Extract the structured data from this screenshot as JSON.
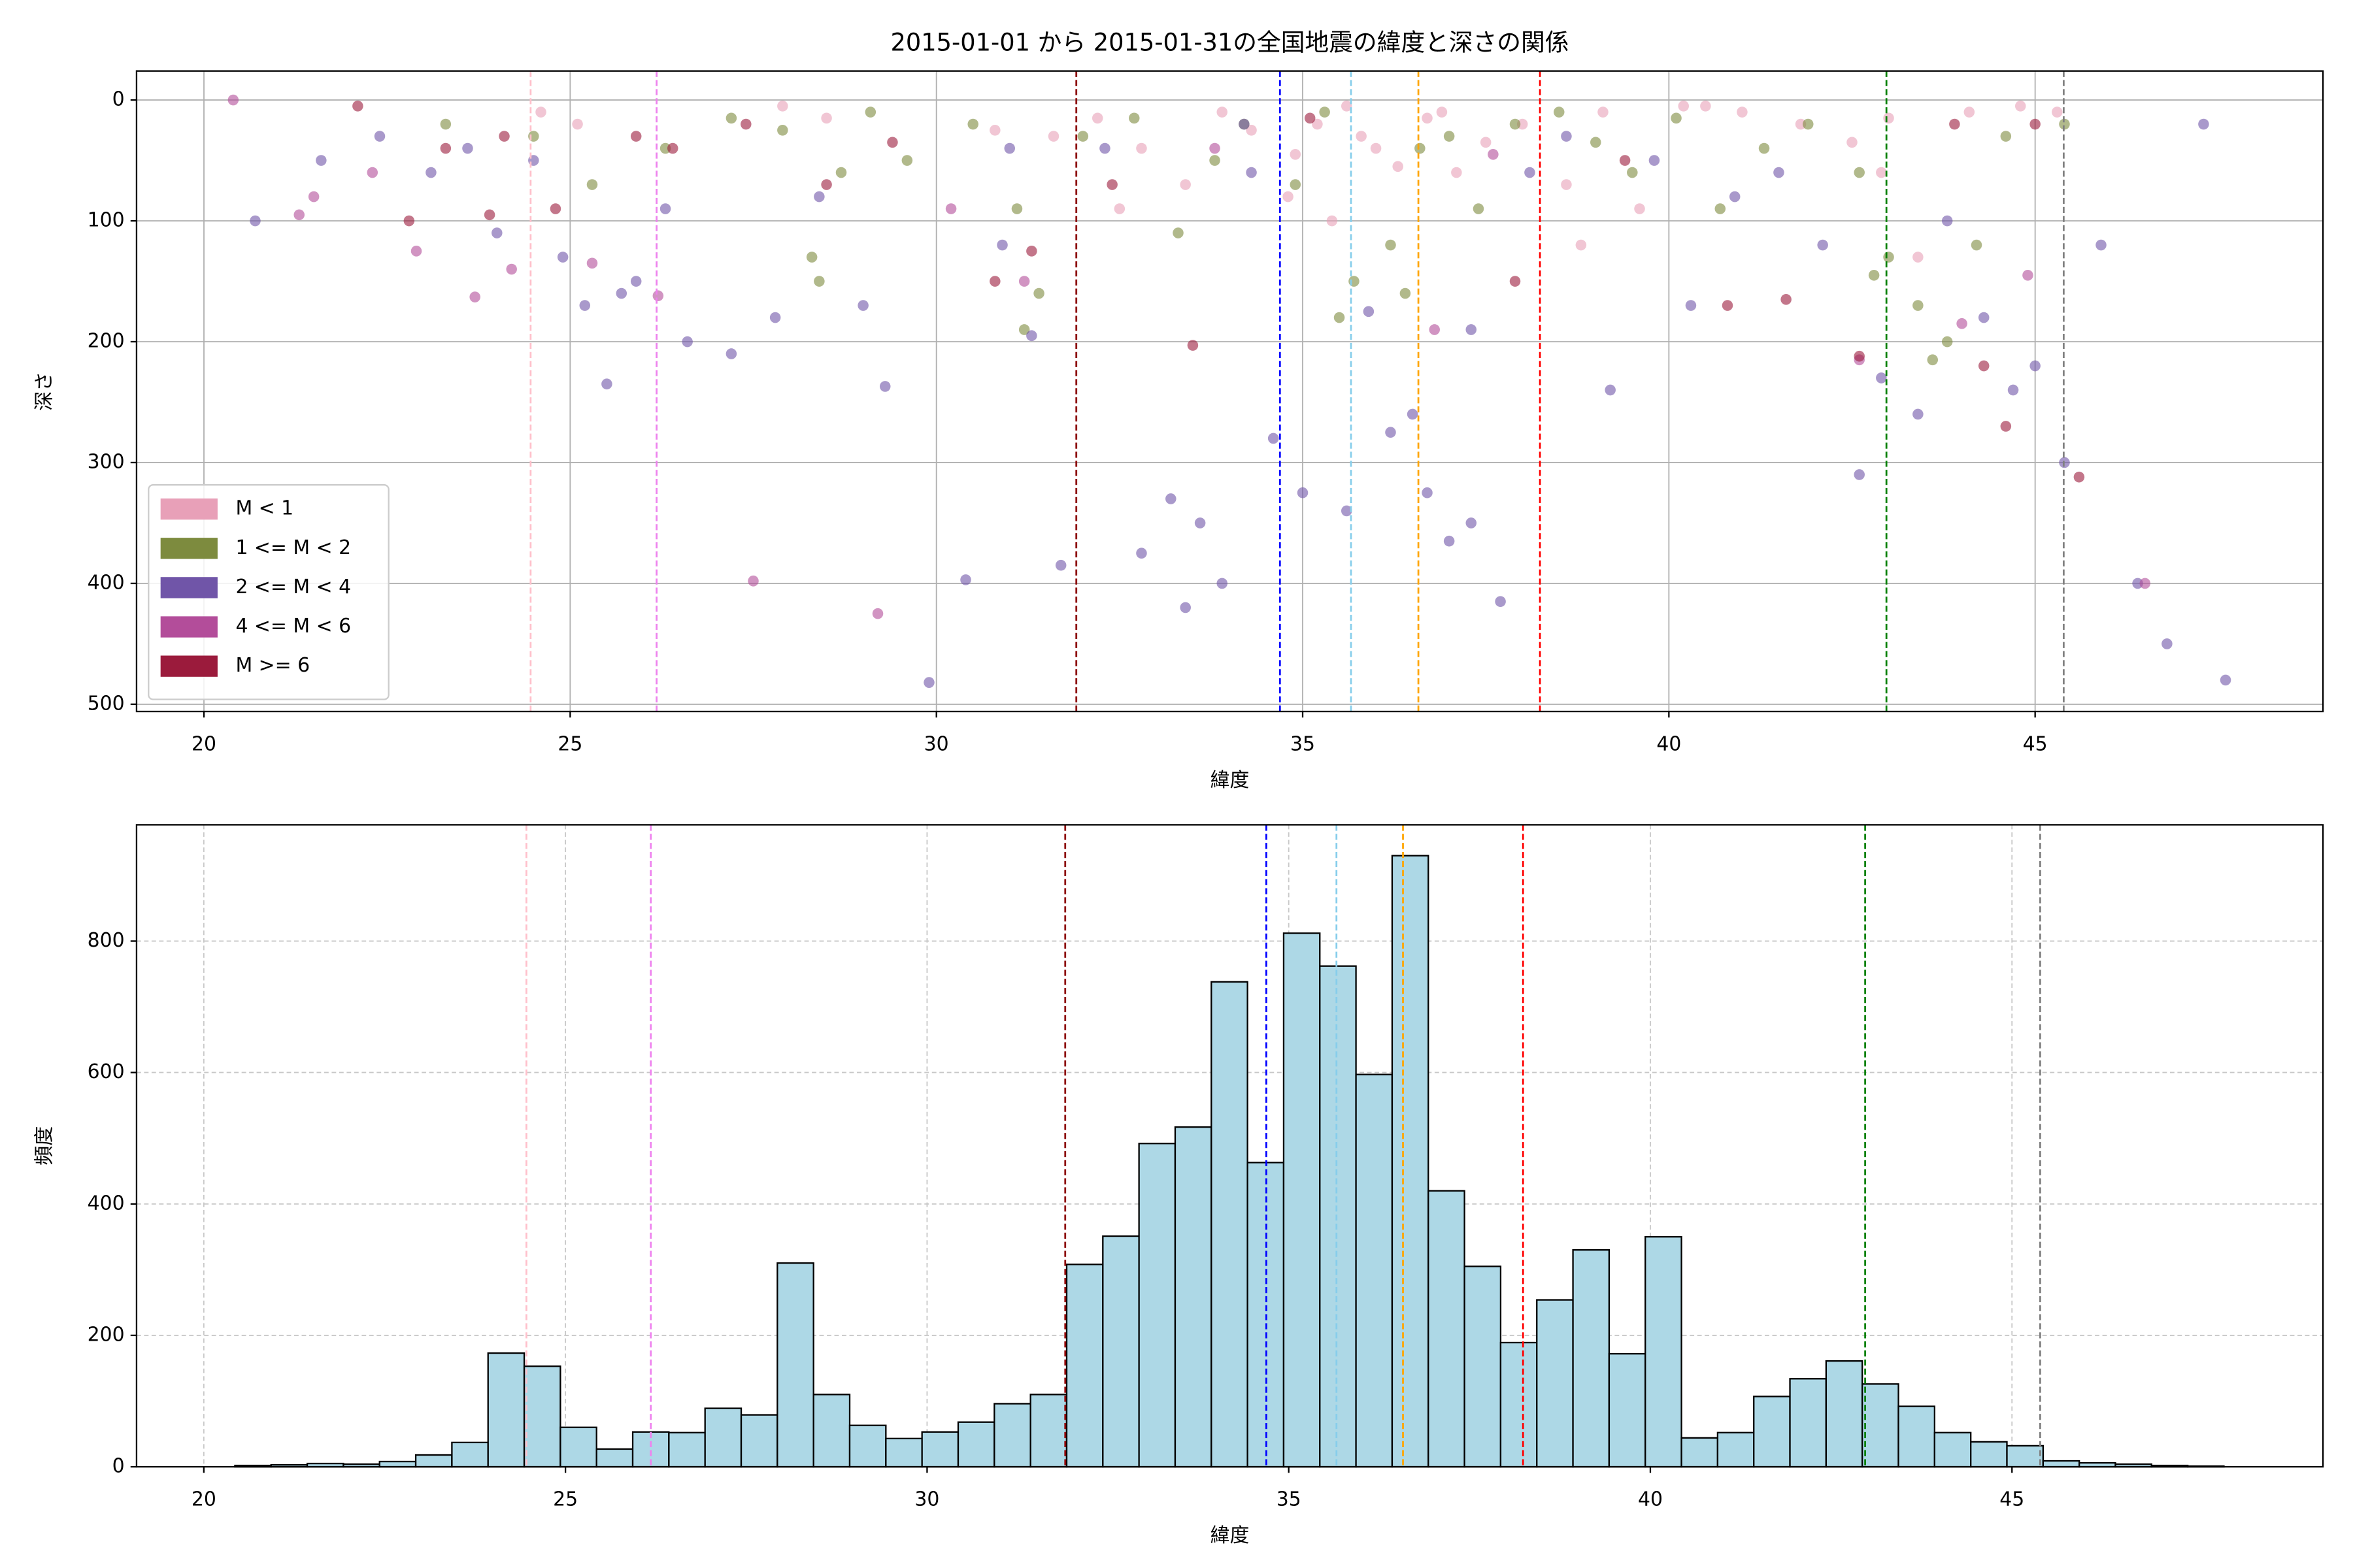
{
  "chart_data": [
    {
      "type": "scatter",
      "title": "2015-01-01 から 2015-01-31の全国地震の緯度と深さの関係",
      "x_label": "緯度",
      "y_label": "深さ",
      "xlim": [
        19.08,
        48.93
      ],
      "ylim": [
        506,
        -24
      ],
      "xticks": [
        20,
        25,
        30,
        35,
        40,
        45
      ],
      "yticks": [
        0,
        100,
        200,
        300,
        400,
        500
      ],
      "grid": true,
      "grid_style": "solid",
      "legend": "lower left",
      "alpha": 0.6,
      "vlines": [
        {
          "x": 24.46,
          "color": "pink"
        },
        {
          "x": 26.18,
          "color": "violet"
        },
        {
          "x": 31.91,
          "color": "darkred"
        },
        {
          "x": 34.69,
          "color": "blue"
        },
        {
          "x": 35.66,
          "color": "skyblue"
        },
        {
          "x": 36.58,
          "color": "orange"
        },
        {
          "x": 38.24,
          "color": "red"
        },
        {
          "x": 42.97,
          "color": "green"
        },
        {
          "x": 45.39,
          "color": "gray"
        }
      ],
      "series": [
        {
          "name": "M < 1",
          "color": "#e8a0b8",
          "x": [
            24.6,
            25.1,
            27.9,
            28.5,
            30.8,
            31.6,
            32.2,
            32.8,
            33.4,
            33.9,
            34.3,
            34.8,
            35.2,
            35.6,
            36.0,
            36.3,
            36.7,
            37.1,
            37.5,
            38.0,
            38.6,
            39.1,
            39.6,
            40.2,
            41.0,
            41.8,
            42.5,
            42.9,
            43.4,
            44.1,
            44.8,
            45.3,
            32.5,
            34.9,
            35.8,
            36.9,
            40.5,
            43.0,
            38.8,
            35.4
          ],
          "values": [
            10,
            20,
            5,
            15,
            25,
            30,
            15,
            40,
            70,
            10,
            25,
            80,
            20,
            5,
            40,
            55,
            15,
            60,
            35,
            20,
            70,
            10,
            90,
            5,
            10,
            20,
            35,
            60,
            130,
            10,
            5,
            10,
            90,
            45,
            30,
            10,
            5,
            15,
            120,
            100
          ]
        },
        {
          "name": "1 <= M < 2",
          "color": "#7d8b3e",
          "x": [
            23.3,
            24.5,
            25.3,
            26.3,
            27.2,
            27.9,
            28.3,
            28.7,
            29.1,
            29.6,
            30.5,
            31.1,
            31.4,
            32.0,
            32.7,
            33.3,
            33.8,
            34.2,
            34.9,
            35.3,
            35.7,
            36.2,
            36.6,
            37.0,
            37.4,
            37.9,
            38.5,
            39.0,
            39.5,
            40.1,
            40.7,
            41.3,
            41.9,
            42.6,
            43.0,
            43.4,
            43.8,
            44.2,
            44.6,
            45.4,
            35.5,
            36.4,
            42.8,
            43.6,
            28.4,
            31.2
          ],
          "values": [
            20,
            30,
            70,
            40,
            15,
            25,
            130,
            60,
            10,
            50,
            20,
            90,
            160,
            30,
            15,
            110,
            50,
            20,
            70,
            10,
            150,
            120,
            40,
            30,
            90,
            20,
            10,
            35,
            60,
            15,
            90,
            40,
            20,
            60,
            130,
            170,
            200,
            120,
            30,
            20,
            180,
            160,
            145,
            215,
            150,
            190
          ]
        },
        {
          "name": "2 <= M < 4",
          "color": "#7055a8",
          "x": [
            20.7,
            21.6,
            22.4,
            23.1,
            23.6,
            24.0,
            24.5,
            24.9,
            25.2,
            25.5,
            25.9,
            26.3,
            26.6,
            27.2,
            27.8,
            28.4,
            29.0,
            29.3,
            29.9,
            30.4,
            30.9,
            31.3,
            31.7,
            32.3,
            32.8,
            33.2,
            33.4,
            33.6,
            33.9,
            34.3,
            34.6,
            35.0,
            35.6,
            35.9,
            36.2,
            36.7,
            37.0,
            37.3,
            37.7,
            38.1,
            38.6,
            39.2,
            39.8,
            40.3,
            40.9,
            41.5,
            42.1,
            42.6,
            42.9,
            43.4,
            43.8,
            44.3,
            44.7,
            45.0,
            45.4,
            45.9,
            46.4,
            46.8,
            47.3,
            47.6,
            36.5,
            37.3,
            34.2,
            31.0,
            25.7
          ],
          "values": [
            100,
            50,
            30,
            60,
            40,
            110,
            50,
            130,
            170,
            235,
            150,
            90,
            200,
            210,
            180,
            80,
            170,
            237,
            482,
            397,
            120,
            195,
            385,
            40,
            375,
            330,
            420,
            350,
            400,
            60,
            280,
            325,
            340,
            175,
            275,
            325,
            365,
            350,
            415,
            60,
            30,
            240,
            50,
            170,
            80,
            60,
            120,
            310,
            230,
            260,
            100,
            180,
            240,
            220,
            300,
            120,
            400,
            450,
            20,
            480,
            260,
            190,
            20,
            40,
            160
          ]
        },
        {
          "name": "4 <= M < 6",
          "color": "#b34d9a",
          "x": [
            20.4,
            21.3,
            21.5,
            22.3,
            22.9,
            23.7,
            24.2,
            25.3,
            26.2,
            27.5,
            29.2,
            31.2,
            33.8,
            36.8,
            42.6,
            44.9,
            46.5,
            44.0,
            37.6,
            30.2
          ],
          "values": [
            0,
            95,
            80,
            60,
            125,
            163,
            140,
            135,
            162,
            398,
            425,
            150,
            40,
            190,
            215,
            145,
            400,
            185,
            45,
            90
          ]
        },
        {
          "name": "M >= 6",
          "color": "#9b1b3c",
          "x": [
            22.1,
            22.8,
            23.3,
            23.9,
            24.1,
            24.8,
            25.9,
            26.4,
            27.4,
            28.5,
            29.4,
            30.8,
            31.3,
            32.4,
            33.5,
            35.1,
            37.9,
            39.4,
            40.8,
            41.6,
            42.6,
            43.9,
            44.3,
            45.0,
            45.6,
            44.6
          ],
          "values": [
            5,
            100,
            40,
            95,
            30,
            90,
            30,
            40,
            20,
            70,
            35,
            150,
            125,
            70,
            203,
            15,
            150,
            50,
            170,
            165,
            212,
            20,
            220,
            20,
            312,
            270
          ]
        }
      ]
    },
    {
      "type": "histogram",
      "x_label": "緯度",
      "y_label": "頻度",
      "color": "#add8e6",
      "edgecolor": "#000000",
      "xlim": [
        19.07,
        49.3
      ],
      "ylim": [
        0,
        977
      ],
      "xticks": [
        20,
        25,
        30,
        35,
        40,
        45
      ],
      "yticks": [
        0,
        200,
        400,
        600,
        800
      ],
      "grid": true,
      "grid_style": "dashed",
      "vlines": [
        {
          "x": 24.46,
          "color": "pink"
        },
        {
          "x": 26.18,
          "color": "violet"
        },
        {
          "x": 31.91,
          "color": "darkred"
        },
        {
          "x": 34.69,
          "color": "blue"
        },
        {
          "x": 35.66,
          "color": "skyblue"
        },
        {
          "x": 36.58,
          "color": "orange"
        },
        {
          "x": 38.24,
          "color": "red"
        },
        {
          "x": 42.97,
          "color": "green"
        },
        {
          "x": 45.39,
          "color": "gray"
        }
      ],
      "bins": [
        20.43,
        20.93,
        21.43,
        21.93,
        22.43,
        22.93,
        23.43,
        23.93,
        24.43,
        24.93,
        25.43,
        25.93,
        26.43,
        26.93,
        27.43,
        27.93,
        28.43,
        28.93,
        29.43,
        29.93,
        30.43,
        30.93,
        31.43,
        31.93,
        32.43,
        32.93,
        33.43,
        33.93,
        34.43,
        34.93,
        35.43,
        35.93,
        36.43,
        36.93,
        37.43,
        37.93,
        38.43,
        38.93,
        39.43,
        39.93,
        40.43,
        40.93,
        41.43,
        41.93,
        42.43,
        42.93,
        43.43,
        43.93,
        44.43,
        44.93,
        45.43,
        45.93,
        46.43,
        46.93,
        47.43,
        47.93
      ],
      "values": [
        2,
        3,
        5,
        4,
        8,
        18,
        37,
        173,
        153,
        60,
        27,
        53,
        52,
        89,
        79,
        310,
        110,
        63,
        43,
        53,
        68,
        96,
        110,
        308,
        351,
        492,
        517,
        738,
        463,
        812,
        762,
        597,
        930,
        420,
        305,
        189,
        254,
        330,
        172,
        350,
        44,
        52,
        107,
        134,
        161,
        126,
        92,
        52,
        38,
        32,
        9,
        6,
        4,
        2,
        1
      ]
    }
  ]
}
